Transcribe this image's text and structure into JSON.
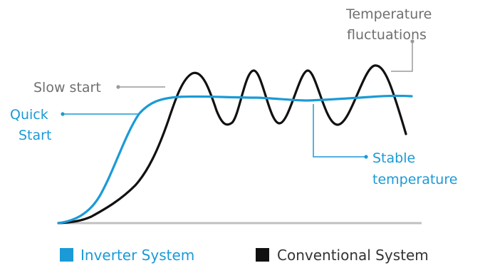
{
  "chart_data": {
    "type": "line",
    "title": "",
    "xlabel": "",
    "ylabel": "",
    "grid": false,
    "series": [
      {
        "name": "Inverter System",
        "color": "#1a9ad6"
      },
      {
        "name": "Conventional System",
        "color": "#111111"
      }
    ],
    "annotations": {
      "temperature_fluctuations": [
        "Temperature",
        "fluctuations"
      ],
      "slow_start": "Slow start",
      "quick_start": [
        "Quick",
        "Start"
      ],
      "stable_temperature": [
        "Stable",
        "temperature"
      ]
    },
    "legend": {
      "position": "bottom",
      "items": [
        {
          "label": "Inverter System",
          "color": "#1a9ad6",
          "text_color": "#1a9ad6"
        },
        {
          "label": "Conventional System",
          "color": "#111111",
          "text_color": "#333333"
        }
      ]
    },
    "colors": {
      "annotation_gray": "#6f6f6f",
      "annotation_blue": "#1a9ad6",
      "axis": "#c0c0c0",
      "leader_gray": "#9a9a9a"
    }
  }
}
